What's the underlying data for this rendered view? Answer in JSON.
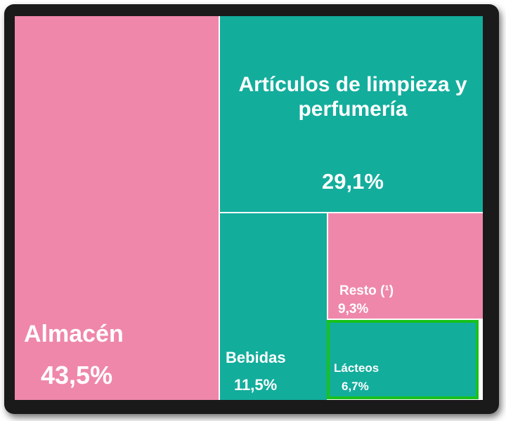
{
  "chart_data": {
    "type": "treemap",
    "colors": {
      "pink": "#ef87ab",
      "teal": "#13ad9c",
      "highlight": "#18c21c"
    },
    "items": [
      {
        "label": "Almacén",
        "value_label": "43,5%",
        "value": 43.5,
        "color": "pink"
      },
      {
        "label": "Artículos de limpieza y perfumería",
        "value_label": "29,1%",
        "value": 29.1,
        "color": "teal"
      },
      {
        "label": "Bebidas",
        "value_label": "11,5%",
        "value": 11.5,
        "color": "teal"
      },
      {
        "label": "Resto (¹)",
        "value_label": "9,3%",
        "value": 9.3,
        "color": "pink"
      },
      {
        "label": "Lácteos",
        "value_label": "6,7%",
        "value": 6.7,
        "color": "teal",
        "highlighted": true
      }
    ]
  }
}
